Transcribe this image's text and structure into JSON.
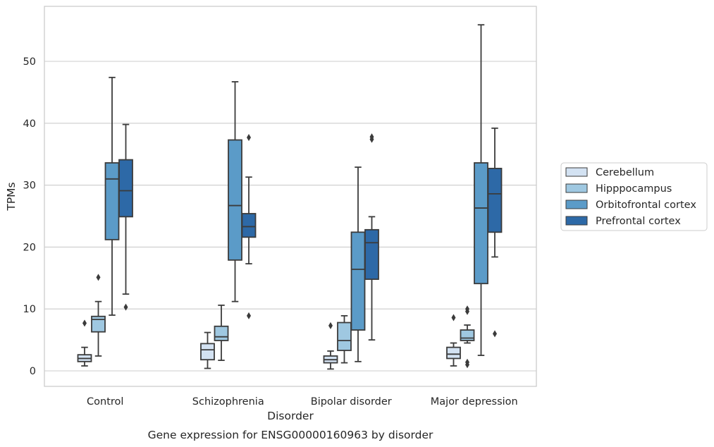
{
  "chart_data": {
    "type": "box",
    "caption": "Gene expression for ENSG00000160963 by disorder",
    "xlabel": "Disorder",
    "ylabel": "TPMs",
    "ylim": [
      -2.5,
      59
    ],
    "yticks": [
      0,
      10,
      20,
      30,
      40,
      50
    ],
    "grid": "horizontal",
    "legend_position": "right",
    "categories": [
      "Control",
      "Schizophrenia",
      "Bipolar disorder",
      "Major depression"
    ],
    "series": [
      {
        "name": "Cerebellum",
        "color": "#d3e2f2",
        "boxes": [
          {
            "whislo": 0.8,
            "q1": 1.5,
            "med": 2.0,
            "q3": 2.6,
            "whishi": 3.8,
            "fliers": [
              7.7
            ]
          },
          {
            "whislo": 0.4,
            "q1": 1.8,
            "med": 3.4,
            "q3": 4.4,
            "whishi": 6.2,
            "fliers": []
          },
          {
            "whislo": 0.3,
            "q1": 1.3,
            "med": 1.8,
            "q3": 2.4,
            "whishi": 3.2,
            "fliers": [
              7.3
            ]
          },
          {
            "whislo": 0.8,
            "q1": 2.0,
            "med": 2.7,
            "q3": 3.8,
            "whishi": 4.5,
            "fliers": [
              8.6
            ]
          }
        ]
      },
      {
        "name": "Hipppocampus",
        "color": "#9fc8e1",
        "boxes": [
          {
            "whislo": 2.4,
            "q1": 6.3,
            "med": 8.3,
            "q3": 8.8,
            "whishi": 11.2,
            "fliers": [
              15.1
            ]
          },
          {
            "whislo": 1.7,
            "q1": 4.9,
            "med": 5.5,
            "q3": 7.2,
            "whishi": 10.6,
            "fliers": []
          },
          {
            "whislo": 1.3,
            "q1": 3.3,
            "med": 4.9,
            "q3": 7.8,
            "whishi": 8.9,
            "fliers": []
          },
          {
            "whislo": 4.5,
            "q1": 4.9,
            "med": 5.3,
            "q3": 6.6,
            "whishi": 7.4,
            "fliers": [
              1.0,
              1.4,
              9.6,
              10.0
            ]
          }
        ]
      },
      {
        "name": "Orbitofrontal cortex",
        "color": "#5b9bc8",
        "boxes": [
          {
            "whislo": 9.0,
            "q1": 21.2,
            "med": 31.0,
            "q3": 33.6,
            "whishi": 47.4,
            "fliers": []
          },
          {
            "whislo": 11.2,
            "q1": 17.9,
            "med": 26.7,
            "q3": 37.3,
            "whishi": 46.7,
            "fliers": []
          },
          {
            "whislo": 1.5,
            "q1": 6.6,
            "med": 16.4,
            "q3": 22.4,
            "whishi": 32.9,
            "fliers": []
          },
          {
            "whislo": 2.5,
            "q1": 14.1,
            "med": 26.3,
            "q3": 33.6,
            "whishi": 55.9,
            "fliers": []
          }
        ]
      },
      {
        "name": "Prefrontal cortex",
        "color": "#2d69a7",
        "boxes": [
          {
            "whislo": 12.4,
            "q1": 24.9,
            "med": 29.1,
            "q3": 34.1,
            "whishi": 39.8,
            "fliers": [
              10.3
            ]
          },
          {
            "whislo": 17.3,
            "q1": 21.6,
            "med": 23.3,
            "q3": 25.4,
            "whishi": 31.3,
            "fliers": [
              8.9,
              37.7
            ]
          },
          {
            "whislo": 5.0,
            "q1": 14.8,
            "med": 20.7,
            "q3": 22.8,
            "whishi": 24.9,
            "fliers": [
              37.4,
              37.8
            ]
          },
          {
            "whislo": 18.4,
            "q1": 22.4,
            "med": 28.6,
            "q3": 32.7,
            "whishi": 39.2,
            "fliers": [
              6.0
            ]
          }
        ]
      }
    ]
  }
}
